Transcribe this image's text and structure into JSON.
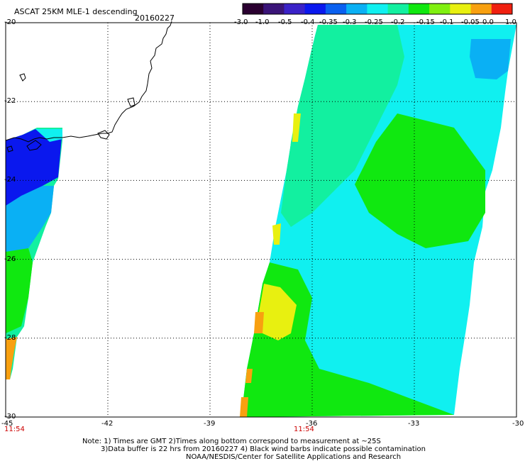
{
  "header": {
    "title": "ASCAT 25KM MLE-1 descending",
    "date": "20160227"
  },
  "colorbar": {
    "labels": [
      "-3.0",
      "-1.0",
      "-0.5",
      "-0.4",
      "-0.35",
      "-0.3",
      "-0.25",
      "-0.2",
      "-0.15",
      "-0.1",
      "-0.05",
      "0.0",
      "1.0"
    ],
    "colors": [
      "#2a0030",
      "#3a1478",
      "#3a22c8",
      "#0a18ee",
      "#0a60f0",
      "#0ab0f4",
      "#10f0f0",
      "#12f0a0",
      "#10e810",
      "#80f010",
      "#e8f010",
      "#f8a010",
      "#f02010"
    ]
  },
  "axes": {
    "lat_labels": [
      "-20",
      "-22",
      "-24",
      "-26",
      "-28",
      "-30"
    ],
    "lon_labels": [
      "-45",
      "-42",
      "-39",
      "-36",
      "-33",
      "-30"
    ],
    "lat_range": [
      -30,
      -20
    ],
    "lon_range": [
      -45,
      -30
    ]
  },
  "times": [
    "11:54",
    "11:54"
  ],
  "footer": {
    "line1": "Note: 1) Times are GMT 2)Times along bottom correspond to measurement at ~25S",
    "line2": "3)Data buffer is 22 hrs from 20160227 4) Black wind barbs indicate possible contamination",
    "line3": "NOAA/NESDIS/Center for Satellite Applications and Research"
  },
  "map_colors": {
    "cyan": "#10f0f0",
    "green": "#12f0a0",
    "bright_green": "#10e810",
    "yellow": "#e8f010",
    "orange": "#f8a010",
    "blue": "#0a18ee",
    "light_blue": "#0ab0f4"
  }
}
